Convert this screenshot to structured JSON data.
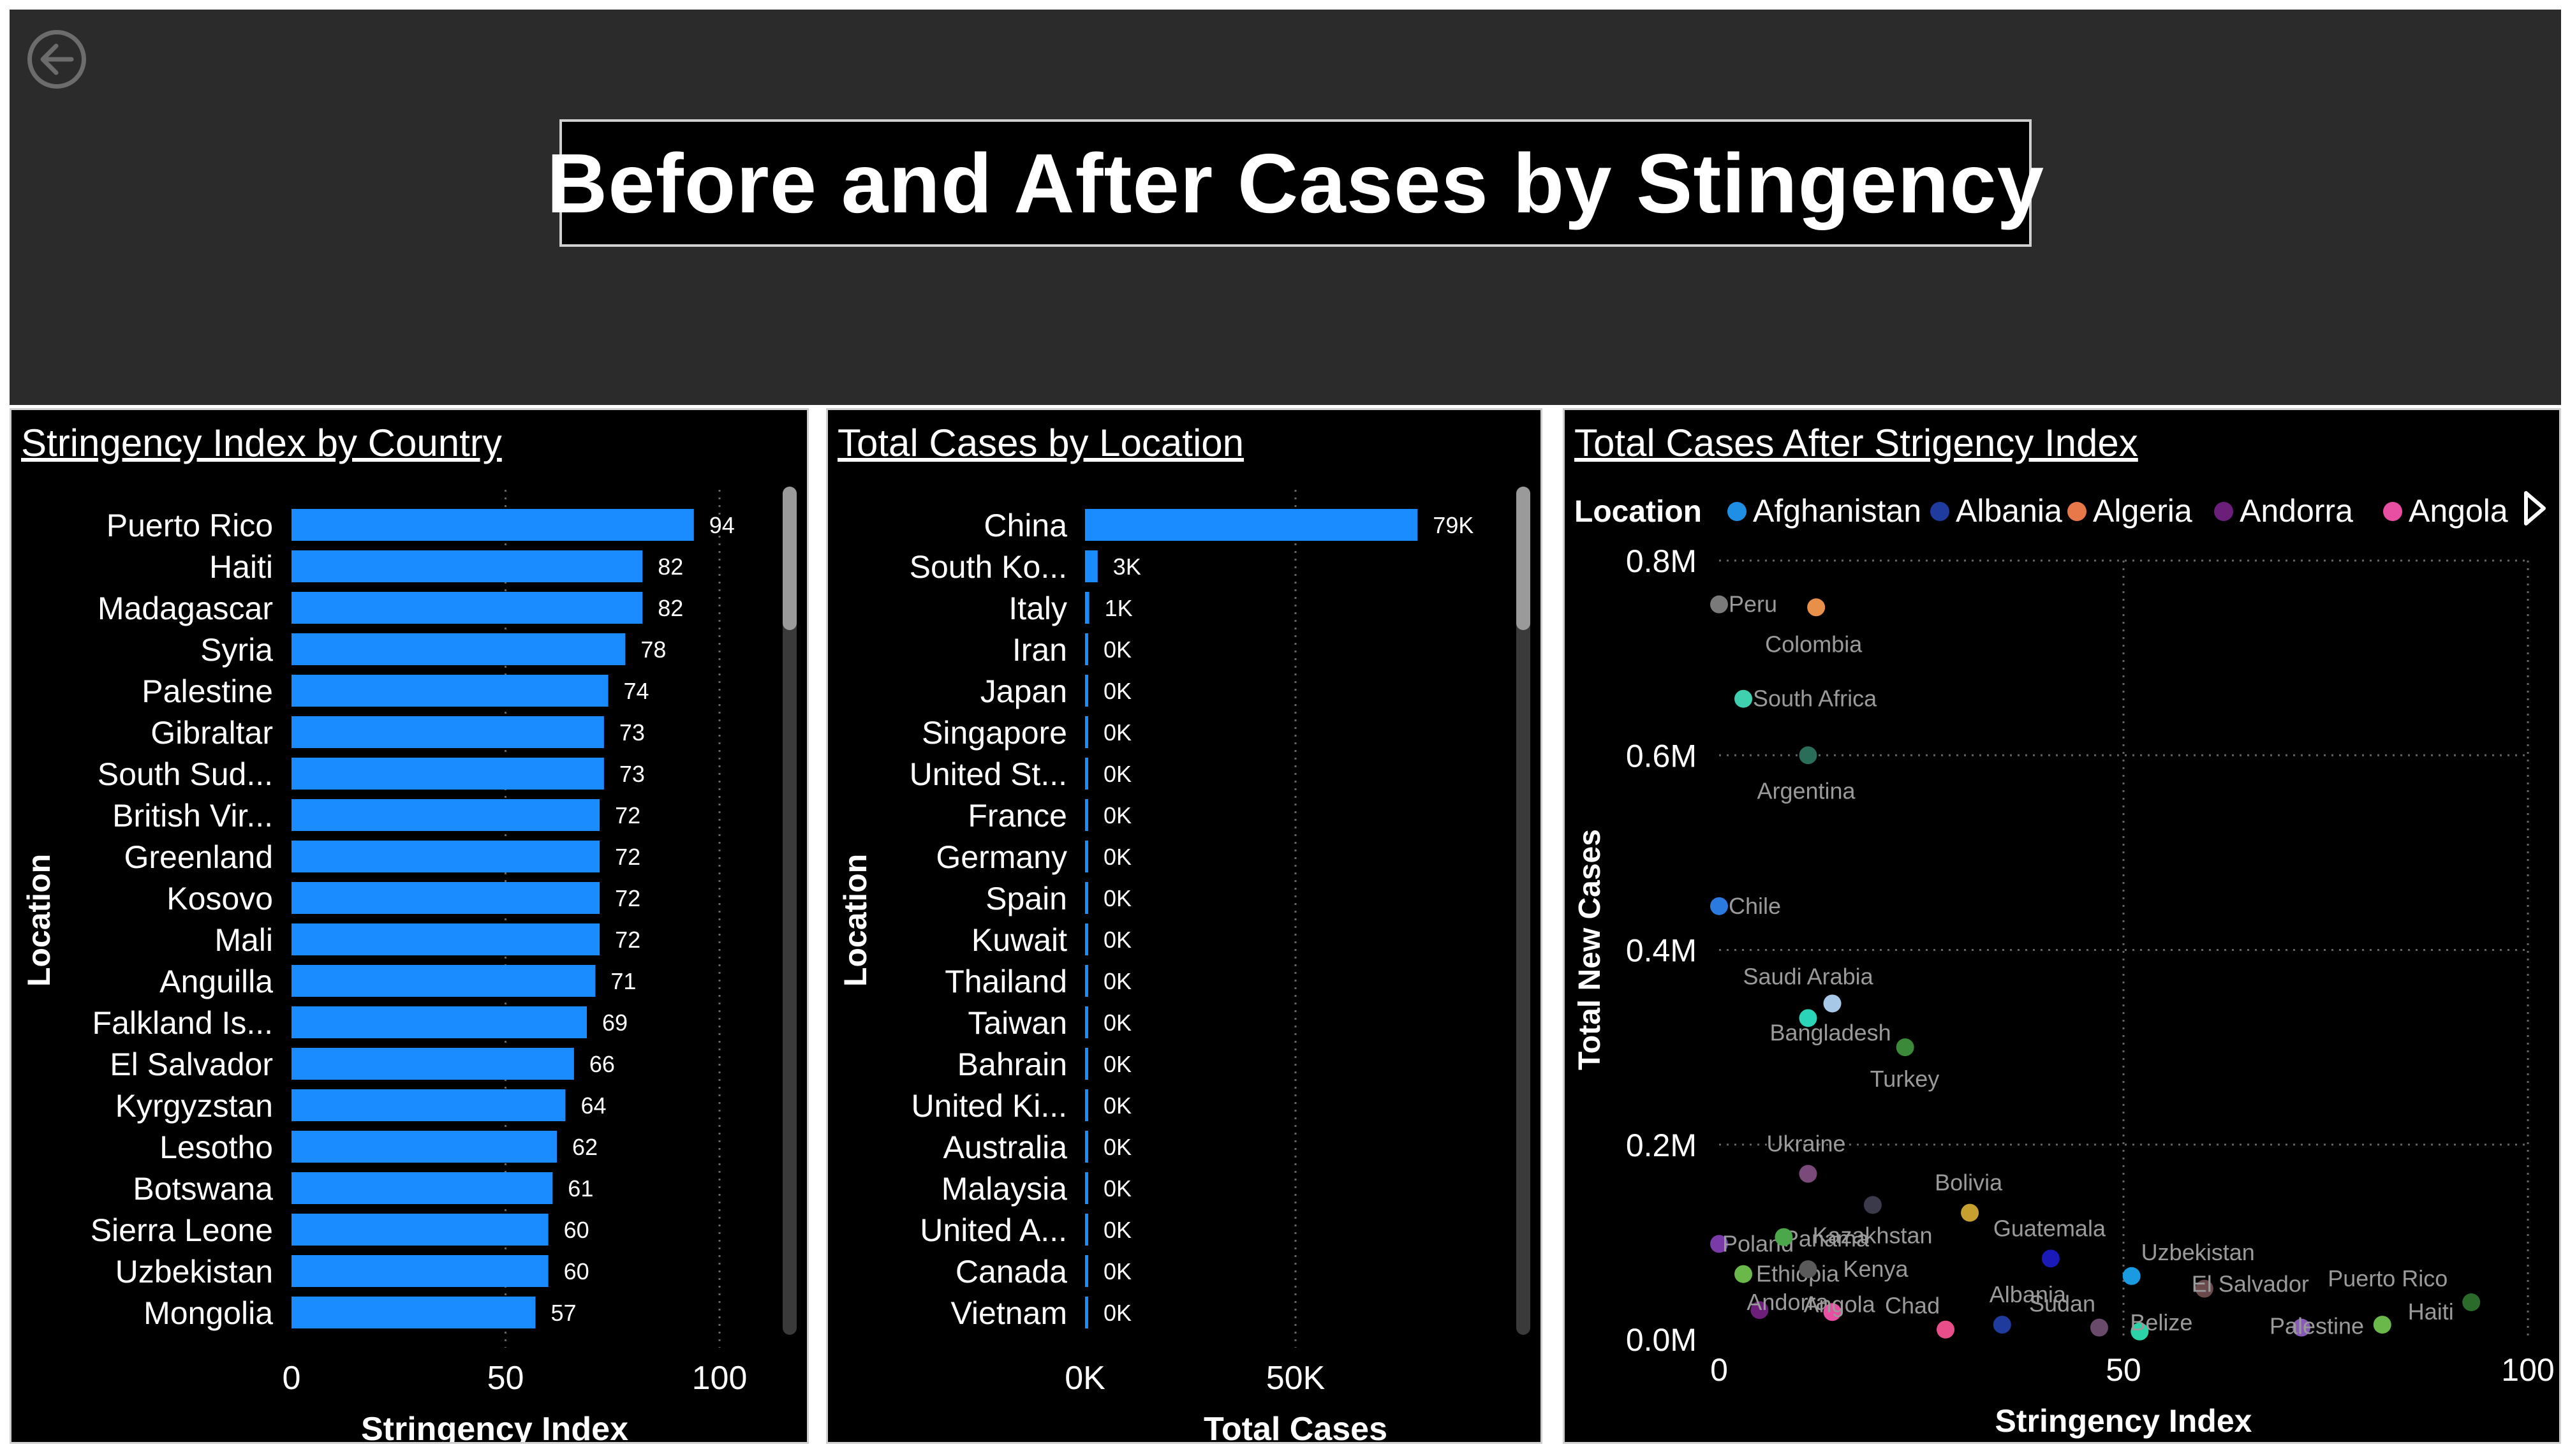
{
  "header": {
    "title": "Before and After Cases by Stingency"
  },
  "colors": {
    "bar": "#1a8cff",
    "panel_bg": "#000000",
    "header_bg": "#2b2b2b"
  },
  "chart_data": [
    {
      "type": "bar",
      "orientation": "horizontal",
      "title": "Stringency Index by Country",
      "xlabel": "Stringency Index",
      "ylabel": "Location",
      "xlim": [
        0,
        100
      ],
      "xticks": [
        "0",
        "50",
        "100"
      ],
      "categories": [
        "Puerto Rico",
        "Haiti",
        "Madagascar",
        "Syria",
        "Palestine",
        "Gibraltar",
        "South Sud...",
        "British Vir...",
        "Greenland",
        "Kosovo",
        "Mali",
        "Anguilla",
        "Falkland Is...",
        "El Salvador",
        "Kyrgyzstan",
        "Lesotho",
        "Botswana",
        "Sierra Leone",
        "Uzbekistan",
        "Mongolia"
      ],
      "values": [
        94,
        82,
        82,
        78,
        74,
        73,
        73,
        72,
        72,
        72,
        72,
        71,
        69,
        66,
        64,
        62,
        61,
        60,
        60,
        57
      ],
      "labels": [
        "94",
        "82",
        "82",
        "78",
        "74",
        "73",
        "73",
        "72",
        "72",
        "72",
        "72",
        "71",
        "69",
        "66",
        "64",
        "62",
        "61",
        "60",
        "60",
        "57"
      ]
    },
    {
      "type": "bar",
      "orientation": "horizontal",
      "title": "Total Cases by Location",
      "xlabel": "Total Cases",
      "ylabel": "Location",
      "xlim": [
        0,
        100000
      ],
      "xticks": [
        "0K",
        "50K"
      ],
      "categories": [
        "China",
        "South Ko...",
        "Italy",
        "Iran",
        "Japan",
        "Singapore",
        "United St...",
        "France",
        "Germany",
        "Spain",
        "Kuwait",
        "Thailand",
        "Taiwan",
        "Bahrain",
        "United Ki...",
        "Australia",
        "Malaysia",
        "United A...",
        "Canada",
        "Vietnam"
      ],
      "values": [
        79000,
        3000,
        1000,
        400,
        300,
        200,
        100,
        100,
        100,
        100,
        100,
        100,
        100,
        100,
        100,
        100,
        100,
        100,
        100,
        100
      ],
      "labels": [
        "79K",
        "3K",
        "1K",
        "0K",
        "0K",
        "0K",
        "0K",
        "0K",
        "0K",
        "0K",
        "0K",
        "0K",
        "0K",
        "0K",
        "0K",
        "0K",
        "0K",
        "0K",
        "0K",
        "0K"
      ]
    },
    {
      "type": "scatter",
      "title": "Total Cases After Strigency Index",
      "xlabel": "Stringency Index",
      "ylabel": "Total New Cases",
      "xlim": [
        0,
        100
      ],
      "ylim": [
        0,
        800000
      ],
      "xticks": [
        "0",
        "50",
        "100"
      ],
      "yticks": [
        "0.0M",
        "0.2M",
        "0.4M",
        "0.6M",
        "0.8M"
      ],
      "legend": {
        "title": "Location",
        "placement": "top",
        "items": [
          {
            "name": "Afghanistan",
            "color": "#1f8fe6"
          },
          {
            "name": "Albania",
            "color": "#1f3b9e"
          },
          {
            "name": "Algeria",
            "color": "#e8774a"
          },
          {
            "name": "Andorra",
            "color": "#6b1f7a"
          },
          {
            "name": "Angola",
            "color": "#e84fa3"
          }
        ]
      },
      "points": [
        {
          "label": "Peru",
          "x": 0,
          "y": 755000,
          "color": "#7a7a7a"
        },
        {
          "label": "Colombia",
          "x": 12,
          "y": 752000,
          "color": "#e8904a"
        },
        {
          "label": "South Africa",
          "x": 3,
          "y": 658000,
          "color": "#3fd0b0"
        },
        {
          "label": "Argentina",
          "x": 11,
          "y": 600000,
          "color": "#2a6e5a"
        },
        {
          "label": "Chile",
          "x": 0,
          "y": 445000,
          "color": "#2a7ae0"
        },
        {
          "label": "Saudi Arabia",
          "x": 14,
          "y": 345000,
          "color": "#a8c8e8"
        },
        {
          "label": "Bangladesh",
          "x": 11,
          "y": 330000,
          "color": "#2ad4b8"
        },
        {
          "label": "Turkey",
          "x": 23,
          "y": 300000,
          "color": "#3a8a3a"
        },
        {
          "label": "Ukraine",
          "x": 11,
          "y": 170000,
          "color": "#7a4a7a"
        },
        {
          "label": "Panama",
          "x": 19,
          "y": 138000,
          "color": "#3a3a4a"
        },
        {
          "label": "Bolivia",
          "x": 31,
          "y": 130000,
          "color": "#c8a030"
        },
        {
          "label": "Poland",
          "x": 0,
          "y": 98000,
          "color": "#7a3aa8"
        },
        {
          "label": "Kazakhstan",
          "x": 8,
          "y": 105000,
          "color": "#4aa84a"
        },
        {
          "label": "Guatemala",
          "x": 41,
          "y": 83000,
          "color": "#1a1ab8"
        },
        {
          "label": "Uzbekistan",
          "x": 51,
          "y": 65000,
          "color": "#1a9ae0"
        },
        {
          "label": "Ethiopia",
          "x": 3,
          "y": 67000,
          "color": "#6ab84a"
        },
        {
          "label": "Kenya",
          "x": 11,
          "y": 72000,
          "color": "#5a5a5a"
        },
        {
          "label": "El Salvador",
          "x": 60,
          "y": 52000,
          "color": "#6a4a4a"
        },
        {
          "label": "Puerto Rico",
          "x": 93,
          "y": 38000,
          "color": "#2a6a2a"
        },
        {
          "label": "Albania",
          "x": 35,
          "y": 15000,
          "color": "#1f3b9e"
        },
        {
          "label": "Sudan",
          "x": 47,
          "y": 12000,
          "color": "#6a4a6a"
        },
        {
          "label": "Chad",
          "x": 28,
          "y": 10000,
          "color": "#e84f8a"
        },
        {
          "label": "Belize",
          "x": 52,
          "y": 8000,
          "color": "#2ad4a8"
        },
        {
          "label": "Haiti",
          "x": 82,
          "y": 15000,
          "color": "#6ab84a"
        },
        {
          "label": "Palestine",
          "x": 72,
          "y": 12000,
          "color": "#8a5ab8"
        },
        {
          "label": "Andorra",
          "x": 5,
          "y": 30000,
          "color": "#6b1f7a"
        },
        {
          "label": "Angola",
          "x": 14,
          "y": 28000,
          "color": "#e84fa3"
        }
      ]
    }
  ]
}
